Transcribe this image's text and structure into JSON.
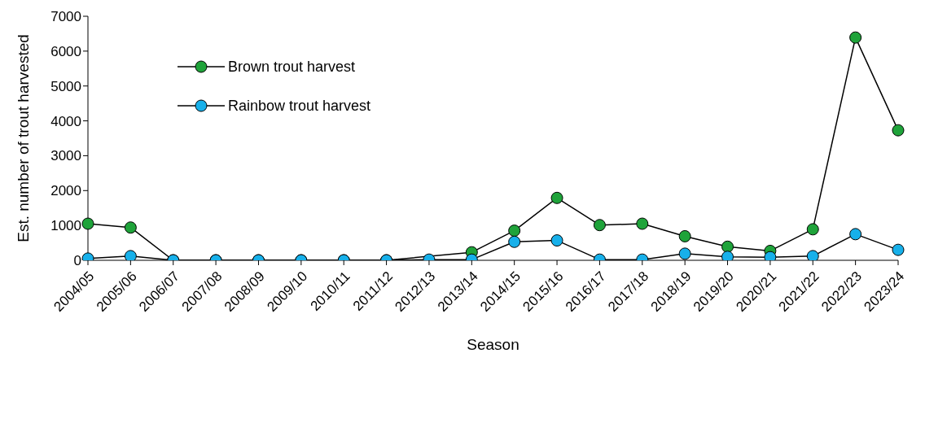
{
  "chart_data": {
    "type": "line",
    "xlabel": "Season",
    "ylabel": "Est. number of trout harvested",
    "categories": [
      "2004/05",
      "2005/06",
      "2006/07",
      "2007/08",
      "2008/09",
      "2009/10",
      "2010/11",
      "2011/12",
      "2012/13",
      "2013/14",
      "2014/15",
      "2015/16",
      "2016/17",
      "2017/18",
      "2018/19",
      "2019/20",
      "2020/21",
      "2021/22",
      "2022/23",
      "2023/24"
    ],
    "series": [
      {
        "name": "Brown trout harvest",
        "color": "#1fa33a",
        "values": [
          1050,
          940,
          0,
          0,
          0,
          0,
          0,
          0,
          null,
          230,
          850,
          1790,
          1010,
          1050,
          690,
          390,
          270,
          890,
          6390,
          3730
        ]
      },
      {
        "name": "Rainbow trout harvest",
        "color": "#17b0ea",
        "values": [
          50,
          120,
          0,
          0,
          0,
          0,
          0,
          0,
          20,
          20,
          530,
          570,
          20,
          20,
          190,
          100,
          90,
          120,
          750,
          300
        ]
      }
    ],
    "ylim": [
      0,
      7000
    ],
    "yticks": [
      0,
      1000,
      2000,
      3000,
      4000,
      5000,
      6000,
      7000
    ],
    "grid": false,
    "legend": "top left",
    "marker": "circle",
    "line_style": "solid"
  }
}
